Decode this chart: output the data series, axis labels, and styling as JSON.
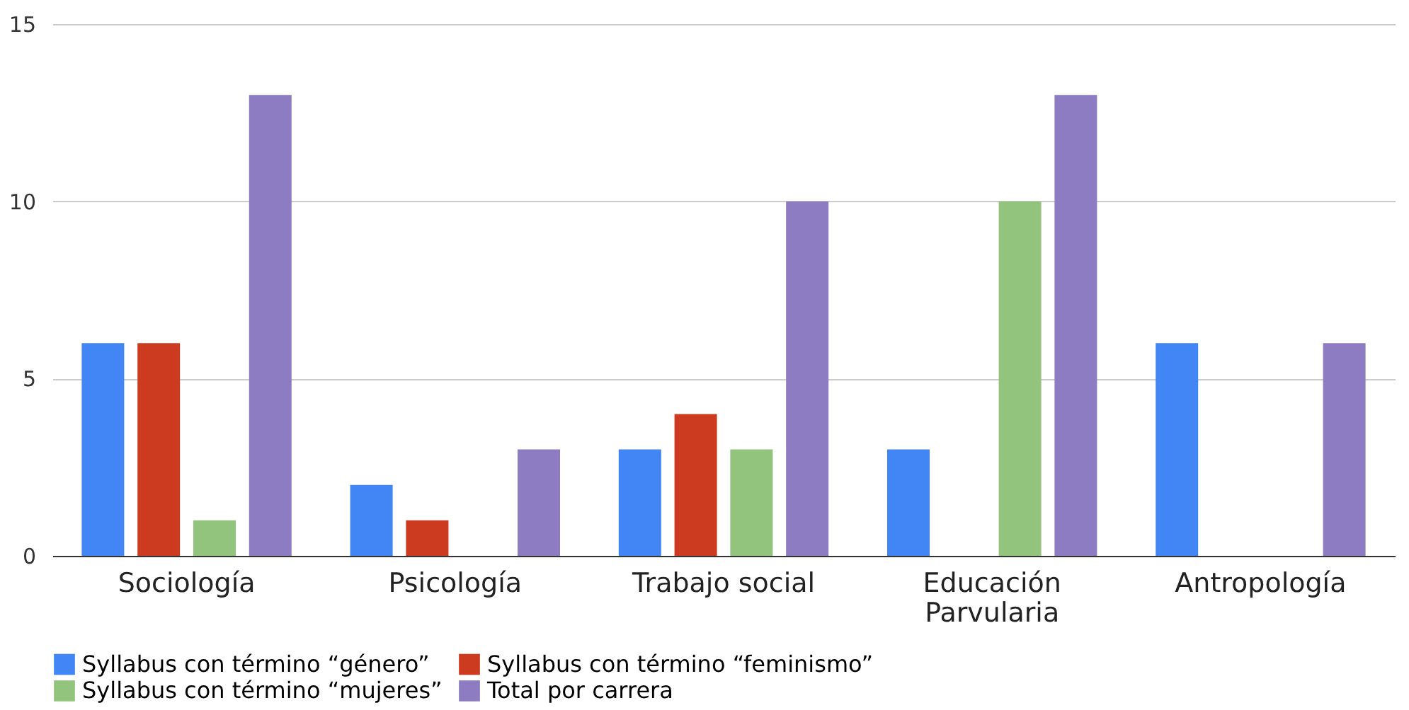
{
  "chart_data": {
    "type": "bar",
    "categories": [
      "Sociología",
      "Psicología",
      "Trabajo social",
      "Educación\nParvularia",
      "Antropología"
    ],
    "series": [
      {
        "name": "Syllabus con término “género”",
        "color": "#4285f4",
        "values": [
          6,
          2,
          3,
          3,
          6
        ]
      },
      {
        "name": "Syllabus con término “feminismo”",
        "color": "#cc3b1f",
        "values": [
          6,
          1,
          4,
          null,
          null
        ]
      },
      {
        "name": "Syllabus con término “mujeres”",
        "color": "#93c47d",
        "values": [
          1,
          null,
          3,
          10,
          null
        ]
      },
      {
        "name": "Total por carrera",
        "color": "#8e7cc3",
        "values": [
          13,
          3,
          10,
          13,
          6
        ]
      }
    ],
    "ylim": [
      0,
      15
    ],
    "yticks": [
      0,
      5,
      10,
      15
    ],
    "grid": "y",
    "legend": "bottom"
  }
}
